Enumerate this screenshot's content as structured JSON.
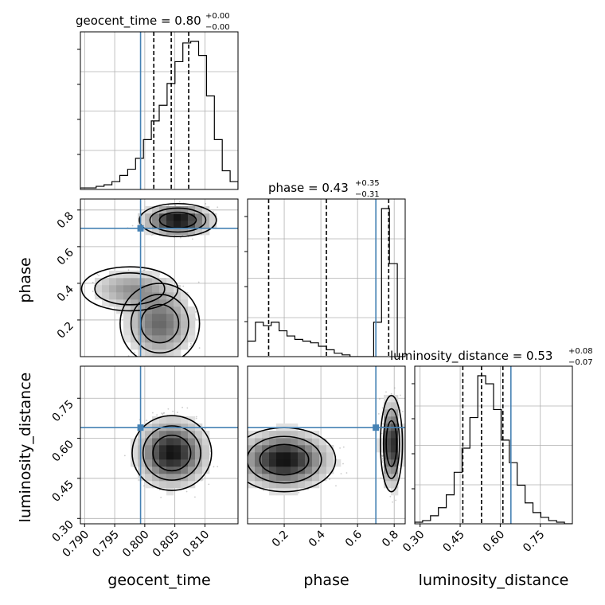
{
  "chart_data": {
    "type": "corner",
    "parameters": [
      {
        "name": "geocent_time",
        "axis_label": "geocent_time",
        "range": [
          0.7893,
          0.8155
        ],
        "ticks": [
          0.79,
          0.795,
          0.8,
          0.805,
          0.81
        ],
        "tick_labels": [
          "0.790",
          "0.795",
          "0.800",
          "0.805",
          "0.810"
        ],
        "truth": 0.7993,
        "quantiles": [
          0.8015,
          0.8044,
          0.8073
        ],
        "title": {
          "main": "geocent_time = 0.80",
          "plus": "+0.00",
          "minus": "−0.00"
        },
        "histogram": {
          "edges_start": 0.7893,
          "bin_width": 0.00131,
          "counts": [
            1,
            1,
            2,
            3,
            5,
            9,
            13,
            20,
            32,
            44,
            54,
            68,
            82,
            94,
            95,
            86,
            60,
            32,
            12,
            5
          ]
        }
      },
      {
        "name": "phase",
        "axis_label": "phase",
        "range": [
          0.0,
          0.86
        ],
        "ticks": [
          0.2,
          0.4,
          0.6,
          0.8
        ],
        "tick_labels": [
          "0.2",
          "0.4",
          "0.6",
          "0.8"
        ],
        "truth": 0.7,
        "quantiles": [
          0.115,
          0.43,
          0.77
        ],
        "title": {
          "main": "phase = 0.43",
          "plus": "+0.35",
          "minus": "−0.31"
        },
        "histogram": {
          "edges_start": 0.0,
          "bin_width": 0.043,
          "counts": [
            9,
            20,
            18,
            20,
            15,
            12,
            10,
            9,
            8,
            6,
            4,
            2,
            1,
            0,
            0,
            0,
            20,
            86,
            54,
            0
          ]
        }
      },
      {
        "name": "luminosity_distance",
        "axis_label": "luminosity_distance",
        "range": [
          0.28,
          0.87
        ],
        "ticks": [
          0.3,
          0.45,
          0.6,
          0.75
        ],
        "tick_labels": [
          "0.30",
          "0.45",
          "0.60",
          "0.75"
        ],
        "truth": 0.64,
        "quantiles": [
          0.46,
          0.53,
          0.61
        ],
        "title": {
          "main": "luminosity_distance = 0.53",
          "plus": "+0.08",
          "minus": "−0.07"
        },
        "histogram": {
          "edges_start": 0.28,
          "bin_width": 0.0295,
          "counts": [
            1,
            2,
            5,
            10,
            18,
            32,
            47,
            66,
            92,
            87,
            71,
            52,
            38,
            24,
            13,
            7,
            4,
            2,
            1,
            0
          ]
        }
      }
    ],
    "row_labels": [
      "phase",
      "luminosity_distance"
    ],
    "row_ticks": {
      "phase": {
        "ticks": [
          0.2,
          0.4,
          0.6,
          0.8
        ],
        "tick_labels": [
          "0.2",
          "0.4",
          "0.6",
          "0.8"
        ]
      },
      "luminosity_distance": {
        "ticks": [
          0.3,
          0.45,
          0.6,
          0.75
        ],
        "tick_labels": [
          "0.30",
          "0.45",
          "0.60",
          "0.75"
        ]
      }
    },
    "truth_color": "#4682b4",
    "quantile_style": "dashed",
    "grid": true,
    "pairs": [
      {
        "x": "geocent_time",
        "y": "phase",
        "modes": [
          {
            "mx": 0.8055,
            "my": 0.745,
            "sx": 0.0032,
            "sy": 0.045,
            "w": 0.5
          },
          {
            "mx": 0.8025,
            "my": 0.18,
            "sx": 0.0033,
            "sy": 0.11,
            "w": 0.3
          },
          {
            "mx": 0.7975,
            "my": 0.37,
            "sx": 0.004,
            "sy": 0.06,
            "w": 0.2
          }
        ]
      },
      {
        "x": "geocent_time",
        "y": "luminosity_distance",
        "modes": [
          {
            "mx": 0.8045,
            "my": 0.545,
            "sx": 0.0033,
            "sy": 0.07,
            "w": 1.0
          }
        ]
      },
      {
        "x": "phase",
        "y": "luminosity_distance",
        "modes": [
          {
            "mx": 0.785,
            "my": 0.58,
            "sx": 0.03,
            "sy": 0.09,
            "w": 0.5
          },
          {
            "mx": 0.2,
            "my": 0.52,
            "sx": 0.14,
            "sy": 0.06,
            "w": 0.5
          }
        ]
      }
    ]
  }
}
